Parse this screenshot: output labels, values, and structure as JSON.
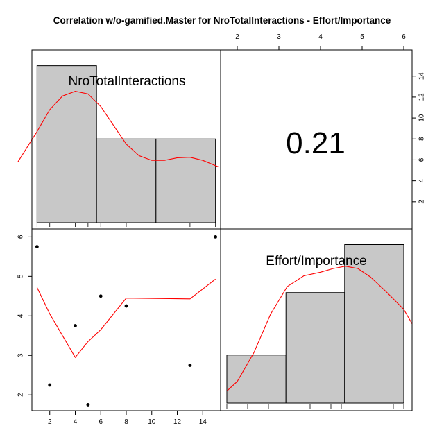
{
  "chart_data": {
    "type": "scatter",
    "title": "Correlation w/o-gamified.Master for NroTotalInteractions - Effort/Importance",
    "variables": [
      "NroTotalInteractions",
      "Effort/Importance"
    ],
    "correlation": "0.21",
    "colors": {
      "bar_fill": "#c8c8c8",
      "density": "#ff0000",
      "points": "#000000"
    },
    "x_ticks": [
      2,
      4,
      6,
      8,
      10,
      12,
      14
    ],
    "y_ticks": [
      2,
      3,
      4,
      5,
      6
    ],
    "top_axis_ticks": [
      2,
      3,
      4,
      5,
      6
    ],
    "right_axis_ticks": [
      2,
      4,
      6,
      8,
      10,
      12,
      14
    ],
    "x_range": [
      0.6,
      15.4
    ],
    "y_range": [
      1.6,
      6.2
    ],
    "scatter_points": [
      {
        "x": 1,
        "y": 5.75
      },
      {
        "x": 2,
        "y": 2.25
      },
      {
        "x": 4,
        "y": 3.75
      },
      {
        "x": 5,
        "y": 1.75
      },
      {
        "x": 6,
        "y": 4.5
      },
      {
        "x": 8,
        "y": 4.25
      },
      {
        "x": 13,
        "y": 2.75
      },
      {
        "x": 15,
        "y": 6.0
      }
    ],
    "scatter_smooth": [
      {
        "x": 1,
        "y": 4.72
      },
      {
        "x": 2,
        "y": 4.05
      },
      {
        "x": 4,
        "y": 2.95
      },
      {
        "x": 5,
        "y": 3.35
      },
      {
        "x": 6,
        "y": 3.65
      },
      {
        "x": 8,
        "y": 4.45
      },
      {
        "x": 13,
        "y": 4.43
      },
      {
        "x": 15,
        "y": 4.93
      }
    ],
    "hist_x": {
      "breaks": [
        1,
        5.67,
        10.33,
        15
      ],
      "counts": [
        15,
        8,
        8
      ],
      "ymax": 16.5,
      "density_curve": [
        {
          "x": -0.5,
          "y": 5.8
        },
        {
          "x": 1,
          "y": 8.7
        },
        {
          "x": 2,
          "y": 10.8
        },
        {
          "x": 3,
          "y": 12.1
        },
        {
          "x": 4,
          "y": 12.55
        },
        {
          "x": 5,
          "y": 12.3
        },
        {
          "x": 6,
          "y": 11.1
        },
        {
          "x": 7,
          "y": 9.3
        },
        {
          "x": 8,
          "y": 7.5
        },
        {
          "x": 9,
          "y": 6.4
        },
        {
          "x": 10,
          "y": 5.95
        },
        {
          "x": 11,
          "y": 5.95
        },
        {
          "x": 12,
          "y": 6.2
        },
        {
          "x": 13,
          "y": 6.25
        },
        {
          "x": 14,
          "y": 5.95
        },
        {
          "x": 15.3,
          "y": 5.3
        }
      ],
      "rug": [
        1,
        2,
        4,
        5,
        6,
        8,
        13,
        15
      ]
    },
    "hist_y": {
      "breaks": [
        1.75,
        3.17,
        4.58,
        6.0
      ],
      "counts": [
        2,
        4.6,
        6.6
      ],
      "ymax": 7.25,
      "density_curve": [
        {
          "x": 1.75,
          "y": 0.5
        },
        {
          "x": 2.0,
          "y": 0.9
        },
        {
          "x": 2.4,
          "y": 2.1
        },
        {
          "x": 2.8,
          "y": 3.7
        },
        {
          "x": 3.2,
          "y": 4.85
        },
        {
          "x": 3.6,
          "y": 5.3
        },
        {
          "x": 4.0,
          "y": 5.45
        },
        {
          "x": 4.3,
          "y": 5.6
        },
        {
          "x": 4.6,
          "y": 5.7
        },
        {
          "x": 4.9,
          "y": 5.6
        },
        {
          "x": 5.2,
          "y": 5.25
        },
        {
          "x": 5.6,
          "y": 4.6
        },
        {
          "x": 6.0,
          "y": 3.9
        },
        {
          "x": 6.2,
          "y": 3.3
        }
      ],
      "rug": [
        1.75,
        2.25,
        2.75,
        3.75,
        4.25,
        4.5,
        5.75,
        6.0
      ]
    }
  }
}
